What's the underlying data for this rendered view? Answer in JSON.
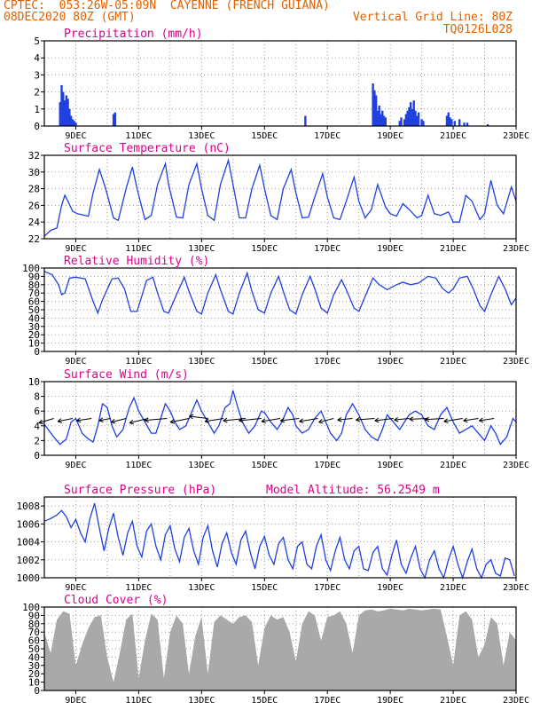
{
  "header": {
    "line1": "CPTEC:  053:26W-05:09N  CAYENNE (FRENCH GUIANA)",
    "line2_left": "08DEC2020 80Z (GMT)",
    "line2_right": "Vertical Grid Line: 80Z",
    "line3_right": "TQ0126L028"
  },
  "colors": {
    "header": "#e06000",
    "title": "#e0008c",
    "series": "#2040e0",
    "cloud": "#a9a9a9",
    "axis": "#000000"
  },
  "x_axis": {
    "range_days": [
      8,
      23
    ],
    "tick_days": [
      9,
      11,
      13,
      15,
      17,
      19,
      21,
      23
    ],
    "tick_labels": [
      "9DEC",
      "11DEC",
      "13DEC",
      "15DEC",
      "17DEC",
      "19DEC",
      "21DEC",
      "23DEC"
    ]
  },
  "chart_data": [
    {
      "type": "bar",
      "title": "Precipitation (mm/h)",
      "ylim": [
        0,
        5
      ],
      "yticks": [
        0,
        1,
        2,
        3,
        4,
        5
      ],
      "x": [
        8.5,
        8.55,
        8.6,
        8.65,
        8.7,
        8.75,
        8.8,
        8.85,
        8.9,
        8.95,
        9.0,
        10.2,
        10.25,
        16.3,
        18.45,
        18.5,
        18.55,
        18.6,
        18.65,
        18.7,
        18.75,
        18.8,
        18.85,
        19.3,
        19.35,
        19.45,
        19.5,
        19.55,
        19.6,
        19.65,
        19.7,
        19.75,
        19.8,
        19.85,
        19.9,
        20.0,
        20.05,
        20.8,
        20.85,
        20.9,
        20.95,
        21.05,
        21.2,
        21.35,
        21.45,
        22.1
      ],
      "values": [
        1.4,
        2.4,
        2.0,
        1.5,
        1.8,
        1.6,
        1.0,
        0.6,
        0.4,
        0.3,
        0.2,
        0.7,
        0.8,
        0.6,
        2.5,
        2.1,
        1.8,
        0.9,
        1.2,
        0.7,
        0.9,
        0.6,
        0.5,
        0.3,
        0.5,
        0.4,
        0.7,
        0.9,
        1.1,
        1.4,
        1.0,
        1.5,
        0.9,
        0.6,
        0.8,
        0.4,
        0.3,
        0.6,
        0.8,
        0.5,
        0.4,
        0.3,
        0.4,
        0.2,
        0.2,
        0.1
      ],
      "xlabel": "",
      "ylabel": ""
    },
    {
      "type": "line",
      "title": "Surface Temperature (nC)",
      "ylim": [
        22,
        32
      ],
      "yticks": [
        22,
        24,
        26,
        28,
        30,
        32
      ],
      "x": [
        8.0,
        8.2,
        8.4,
        8.55,
        8.65,
        8.75,
        8.9,
        9.05,
        9.4,
        9.55,
        9.75,
        9.95,
        10.2,
        10.35,
        10.6,
        10.8,
        10.95,
        11.2,
        11.4,
        11.6,
        11.85,
        11.95,
        12.2,
        12.4,
        12.6,
        12.85,
        13.0,
        13.2,
        13.4,
        13.6,
        13.85,
        14.0,
        14.2,
        14.4,
        14.6,
        14.85,
        15.0,
        15.2,
        15.4,
        15.6,
        15.85,
        16.0,
        16.2,
        16.4,
        16.6,
        16.85,
        17.0,
        17.2,
        17.4,
        17.6,
        17.85,
        18.0,
        18.2,
        18.4,
        18.6,
        18.85,
        19.0,
        19.2,
        19.4,
        19.6,
        19.85,
        20.0,
        20.2,
        20.4,
        20.6,
        20.85,
        21.0,
        21.2,
        21.4,
        21.6,
        21.85,
        22.0,
        22.2,
        22.4,
        22.6,
        22.85,
        23.0
      ],
      "values": [
        22.3,
        23.0,
        23.3,
        26.0,
        27.2,
        26.5,
        25.3,
        25.0,
        24.7,
        27.5,
        30.3,
        28.0,
        24.5,
        24.2,
        28.0,
        30.6,
        28.0,
        24.3,
        24.8,
        28.5,
        31.0,
        28.5,
        24.6,
        24.5,
        28.5,
        31.0,
        28.0,
        24.8,
        24.2,
        28.5,
        31.4,
        28.5,
        24.5,
        24.5,
        28.0,
        30.8,
        28.0,
        24.8,
        24.3,
        28.0,
        30.3,
        27.5,
        24.5,
        24.6,
        27.0,
        29.8,
        27.0,
        24.5,
        24.3,
        26.5,
        29.4,
        26.5,
        24.5,
        25.5,
        28.5,
        25.8,
        25.0,
        24.7,
        26.2,
        25.5,
        24.5,
        24.8,
        27.2,
        25.0,
        24.8,
        25.2,
        24.0,
        24.0,
        27.2,
        26.5,
        24.3,
        25.0,
        29.0,
        26.0,
        25.0,
        28.2,
        26.5
      ],
      "xlabel": "",
      "ylabel": ""
    },
    {
      "type": "line",
      "title": "Relative Humidity (%)",
      "ylim": [
        0,
        100
      ],
      "yticks": [
        0,
        10,
        20,
        30,
        40,
        50,
        60,
        70,
        80,
        90,
        100
      ],
      "x": [
        8.0,
        8.25,
        8.45,
        8.55,
        8.65,
        8.8,
        9.0,
        9.3,
        9.55,
        9.7,
        9.85,
        10.15,
        10.35,
        10.55,
        10.75,
        10.95,
        11.25,
        11.45,
        11.6,
        11.8,
        11.95,
        12.2,
        12.45,
        12.6,
        12.85,
        13.0,
        13.2,
        13.45,
        13.6,
        13.85,
        14.0,
        14.2,
        14.45,
        14.6,
        14.8,
        15.0,
        15.2,
        15.45,
        15.6,
        15.8,
        16.0,
        16.2,
        16.45,
        16.6,
        16.8,
        17.0,
        17.2,
        17.45,
        17.6,
        17.85,
        18.0,
        18.2,
        18.45,
        18.65,
        18.9,
        19.2,
        19.4,
        19.65,
        19.9,
        20.2,
        20.45,
        20.65,
        20.85,
        21.0,
        21.2,
        21.45,
        21.65,
        21.85,
        22.0,
        22.2,
        22.45,
        22.65,
        22.85,
        23.0
      ],
      "values": [
        96,
        92,
        80,
        68,
        70,
        88,
        89,
        87,
        60,
        46,
        62,
        87,
        88,
        75,
        48,
        48,
        85,
        89,
        70,
        48,
        46,
        68,
        89,
        72,
        48,
        45,
        70,
        92,
        74,
        48,
        45,
        70,
        94,
        72,
        50,
        46,
        70,
        90,
        72,
        50,
        45,
        68,
        90,
        75,
        52,
        46,
        68,
        86,
        74,
        52,
        48,
        66,
        88,
        80,
        74,
        80,
        83,
        80,
        82,
        90,
        88,
        76,
        70,
        75,
        88,
        90,
        74,
        55,
        48,
        68,
        90,
        75,
        56,
        64
      ],
      "xlabel": "",
      "ylabel": ""
    },
    {
      "type": "line",
      "title": "Surface Wind (m/s)",
      "ylim": [
        0,
        10
      ],
      "yticks": [
        0,
        2,
        4,
        6,
        8,
        10
      ],
      "x": [
        8.0,
        8.3,
        8.5,
        8.7,
        8.85,
        9.0,
        9.2,
        9.4,
        9.55,
        9.7,
        9.85,
        10.0,
        10.15,
        10.3,
        10.5,
        10.7,
        10.85,
        11.0,
        11.2,
        11.4,
        11.55,
        11.7,
        11.85,
        12.0,
        12.15,
        12.3,
        12.5,
        12.7,
        12.85,
        13.0,
        13.2,
        13.4,
        13.55,
        13.75,
        13.9,
        14.0,
        14.15,
        14.3,
        14.5,
        14.7,
        14.9,
        15.0,
        15.2,
        15.4,
        15.55,
        15.75,
        15.9,
        16.0,
        16.2,
        16.4,
        16.6,
        16.8,
        16.95,
        17.1,
        17.3,
        17.45,
        17.6,
        17.8,
        18.0,
        18.2,
        18.4,
        18.6,
        18.75,
        18.9,
        19.1,
        19.3,
        19.45,
        19.6,
        19.8,
        20.0,
        20.2,
        20.4,
        20.6,
        20.8,
        21.0,
        21.2,
        21.4,
        21.6,
        21.8,
        22.0,
        22.2,
        22.35,
        22.5,
        22.7,
        22.9,
        23.0
      ],
      "values": [
        4.2,
        2.5,
        1.5,
        2.2,
        4.5,
        5.0,
        3.0,
        2.2,
        1.8,
        4.0,
        7.0,
        6.5,
        4.0,
        2.5,
        3.5,
        6.5,
        7.8,
        6.0,
        4.5,
        3.0,
        3.0,
        5.0,
        7.0,
        6.0,
        4.5,
        3.5,
        4.0,
        6.0,
        7.5,
        6.0,
        4.5,
        3.0,
        4.0,
        6.5,
        7.0,
        8.8,
        6.5,
        4.5,
        3.0,
        4.0,
        6.0,
        5.8,
        4.5,
        3.5,
        4.5,
        6.5,
        5.5,
        4.0,
        3.0,
        3.5,
        5.0,
        6.0,
        4.5,
        3.0,
        2.0,
        3.0,
        5.5,
        7.0,
        5.5,
        3.5,
        2.5,
        2.0,
        3.5,
        5.5,
        4.5,
        3.5,
        4.5,
        5.5,
        6.0,
        5.5,
        4.0,
        3.5,
        5.5,
        6.5,
        4.5,
        3.0,
        3.5,
        4.0,
        3.0,
        2.0,
        4.0,
        3.0,
        1.5,
        2.5,
        5.0,
        4.5
      ],
      "vectors_x": [
        8.3,
        8.9,
        9.5,
        10.1,
        10.6,
        11.3,
        11.9,
        12.6,
        13.2,
        13.7,
        14.4,
        14.9,
        15.5,
        16.1,
        16.7,
        17.2,
        17.8,
        18.5,
        19.1,
        19.6,
        20.2,
        20.7,
        21.3,
        21.8,
        22.3
      ],
      "vectors_u": [
        -4,
        -4,
        -4,
        -3,
        -4,
        -5,
        -6,
        -5,
        -5,
        -5,
        -6,
        -6,
        -5,
        -5,
        -5,
        -4,
        -4,
        -5,
        -5,
        -4,
        -5,
        -5,
        -5,
        -4,
        -4
      ],
      "vectors_v": [
        -1.2,
        -0.8,
        -0.6,
        -0.6,
        -1.0,
        -1.2,
        -0.5,
        -1.0,
        0.6,
        -0.8,
        -0.6,
        -0.6,
        -0.8,
        -0.6,
        -0.8,
        -1.0,
        -0.4,
        -0.4,
        -0.6,
        -0.4,
        -0.2,
        -0.3,
        -0.8,
        -0.6,
        -0.6
      ],
      "xlabel": "",
      "ylabel": ""
    },
    {
      "type": "line",
      "title": "Surface Pressure (hPa)",
      "annotation": "Model Altitude: 56.2549 m",
      "ylim": [
        1000,
        1009
      ],
      "yticks": [
        1000,
        1002,
        1004,
        1006,
        1008
      ],
      "x": [
        8.0,
        8.2,
        8.4,
        8.55,
        8.7,
        8.85,
        9.0,
        9.15,
        9.3,
        9.45,
        9.6,
        9.75,
        9.9,
        10.05,
        10.2,
        10.35,
        10.5,
        10.65,
        10.8,
        10.95,
        11.1,
        11.25,
        11.4,
        11.55,
        11.7,
        11.85,
        12.0,
        12.15,
        12.3,
        12.45,
        12.6,
        12.75,
        12.9,
        13.05,
        13.2,
        13.35,
        13.5,
        13.65,
        13.8,
        13.95,
        14.1,
        14.25,
        14.4,
        14.55,
        14.7,
        14.85,
        15.0,
        15.15,
        15.3,
        15.45,
        15.6,
        15.75,
        15.9,
        16.05,
        16.2,
        16.35,
        16.5,
        16.65,
        16.8,
        16.95,
        17.1,
        17.25,
        17.4,
        17.55,
        17.7,
        17.85,
        18.0,
        18.15,
        18.3,
        18.45,
        18.6,
        18.75,
        18.9,
        19.05,
        19.2,
        19.35,
        19.5,
        19.65,
        19.8,
        19.95,
        20.1,
        20.25,
        20.4,
        20.55,
        20.7,
        20.85,
        21.0,
        21.15,
        21.3,
        21.45,
        21.6,
        21.75,
        21.9,
        22.05,
        22.2,
        22.35,
        22.5,
        22.65,
        22.8,
        22.95
      ],
      "values": [
        1006.3,
        1006.6,
        1007.0,
        1007.5,
        1006.8,
        1005.6,
        1006.5,
        1005.0,
        1004.0,
        1006.6,
        1008.3,
        1005.5,
        1003.0,
        1005.5,
        1007.2,
        1004.5,
        1002.5,
        1005.0,
        1006.3,
        1003.5,
        1002.3,
        1005.2,
        1006.0,
        1003.5,
        1002.0,
        1004.8,
        1005.8,
        1003.2,
        1001.8,
        1004.5,
        1005.5,
        1003.0,
        1001.5,
        1004.5,
        1005.8,
        1003.0,
        1001.2,
        1003.8,
        1005.0,
        1002.8,
        1001.5,
        1004.2,
        1005.2,
        1002.8,
        1001.0,
        1003.5,
        1004.6,
        1002.5,
        1001.5,
        1003.8,
        1004.5,
        1002.0,
        1001.0,
        1003.5,
        1004.0,
        1001.5,
        1001.0,
        1003.5,
        1004.8,
        1002.0,
        1000.8,
        1003.0,
        1004.5,
        1002.0,
        1001.0,
        1003.0,
        1003.5,
        1001.0,
        1000.8,
        1002.8,
        1003.5,
        1001.0,
        1000.3,
        1002.5,
        1004.2,
        1001.5,
        1000.5,
        1002.2,
        1003.5,
        1001.0,
        1000.0,
        1002.0,
        1003.0,
        1001.0,
        1000.0,
        1002.0,
        1003.5,
        1001.5,
        1000.0,
        1001.8,
        1003.2,
        1001.0,
        1000.0,
        1001.5,
        1002.0,
        1000.5,
        1000.2,
        1002.2,
        1002.0,
        1000.2
      ],
      "xlabel": "",
      "ylabel": ""
    },
    {
      "type": "area",
      "title": "Cloud Cover (%)",
      "ylim": [
        0,
        100
      ],
      "yticks": [
        0,
        10,
        20,
        30,
        40,
        50,
        60,
        70,
        80,
        90,
        100
      ],
      "x": [
        8.0,
        8.2,
        8.4,
        8.6,
        8.8,
        9.0,
        9.2,
        9.4,
        9.6,
        9.8,
        10.0,
        10.2,
        10.4,
        10.6,
        10.8,
        11.0,
        11.2,
        11.4,
        11.6,
        11.8,
        12.0,
        12.2,
        12.4,
        12.6,
        12.8,
        13.0,
        13.2,
        13.4,
        13.6,
        13.8,
        14.0,
        14.2,
        14.4,
        14.6,
        14.8,
        15.0,
        15.2,
        15.4,
        15.6,
        15.8,
        16.0,
        16.2,
        16.4,
        16.6,
        16.8,
        17.0,
        17.2,
        17.4,
        17.6,
        17.8,
        18.0,
        18.2,
        18.4,
        18.6,
        18.8,
        19.0,
        19.2,
        19.4,
        19.6,
        19.8,
        20.0,
        20.2,
        20.4,
        20.6,
        20.8,
        21.0,
        21.2,
        21.4,
        21.6,
        21.8,
        22.0,
        22.2,
        22.4,
        22.6,
        22.8,
        23.0
      ],
      "values": [
        70,
        45,
        85,
        95,
        92,
        30,
        55,
        75,
        88,
        90,
        40,
        10,
        45,
        85,
        92,
        15,
        60,
        92,
        85,
        15,
        70,
        90,
        80,
        20,
        65,
        88,
        20,
        82,
        90,
        85,
        80,
        88,
        90,
        82,
        30,
        75,
        90,
        85,
        88,
        70,
        35,
        80,
        95,
        90,
        60,
        88,
        90,
        95,
        80,
        45,
        90,
        96,
        97,
        95,
        96,
        98,
        97,
        96,
        98,
        97,
        96,
        97,
        98,
        97,
        65,
        30,
        90,
        95,
        85,
        40,
        55,
        88,
        80,
        30,
        70,
        60
      ],
      "xlabel": "",
      "ylabel": ""
    }
  ]
}
